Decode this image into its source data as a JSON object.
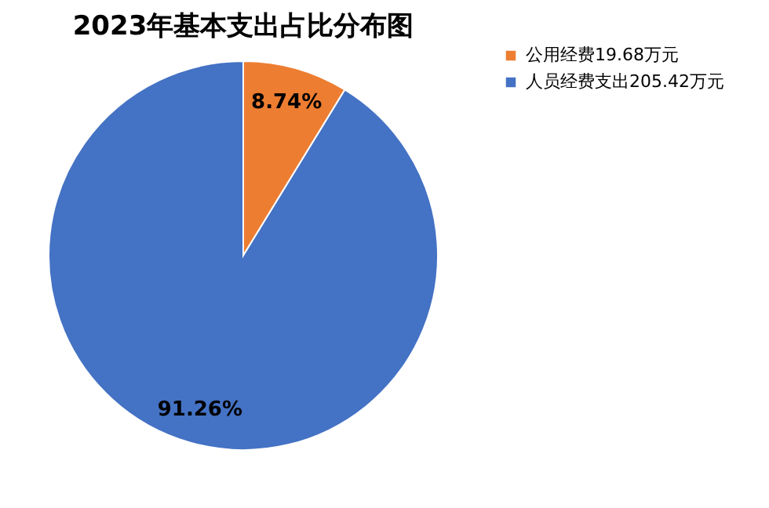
{
  "chart_data": {
    "type": "pie",
    "title": "2023年基本支出占比分布图",
    "categories": [
      "公用经费19.68万元",
      "人员经费支出205.42万元"
    ],
    "values": [
      8.74,
      91.26
    ],
    "colors": [
      "#ed7d31",
      "#4472c4"
    ],
    "value_labels": [
      "8.74%",
      "91.26%"
    ],
    "legend": "right"
  }
}
